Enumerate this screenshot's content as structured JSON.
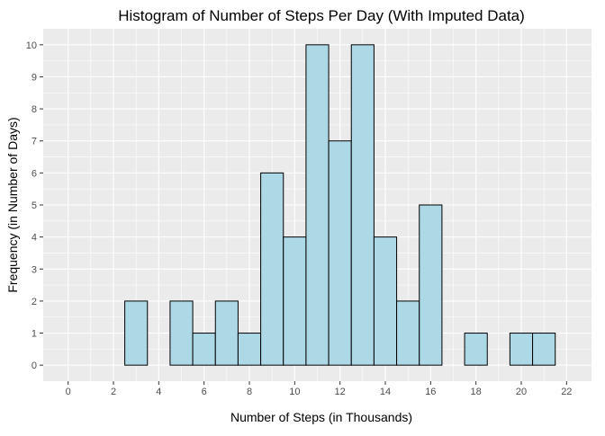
{
  "chart_data": {
    "type": "bar",
    "title": "Histogram of Number of Steps Per Day (With Imputed Data)",
    "xlabel": "Number of Steps (in Thousands)",
    "ylabel": "Frequency (in Number of Days)",
    "bin_width": 1,
    "bin_starts": [
      0.5,
      1.5,
      2.5,
      3.5,
      4.5,
      5.5,
      6.5,
      7.5,
      8.5,
      9.5,
      10.5,
      11.5,
      12.5,
      13.5,
      14.5,
      15.5,
      16.5,
      17.5,
      18.5,
      19.5,
      20.5
    ],
    "values": [
      0,
      0,
      2,
      0,
      2,
      1,
      2,
      1,
      6,
      4,
      10,
      7,
      10,
      4,
      2,
      5,
      0,
      1,
      0,
      1,
      1
    ],
    "xlim": [
      -1.1,
      23.1
    ],
    "ylim": [
      -0.5,
      10.5
    ],
    "x_ticks": [
      0,
      2,
      4,
      6,
      8,
      10,
      12,
      14,
      16,
      18,
      20,
      22
    ],
    "y_ticks": [
      0,
      1,
      2,
      3,
      4,
      5,
      6,
      7,
      8,
      9,
      10
    ],
    "grid": true,
    "colors": {
      "bar_fill": "#add8e6",
      "bar_stroke": "#000000",
      "panel": "#ebebeb",
      "grid": "#ffffff"
    }
  }
}
